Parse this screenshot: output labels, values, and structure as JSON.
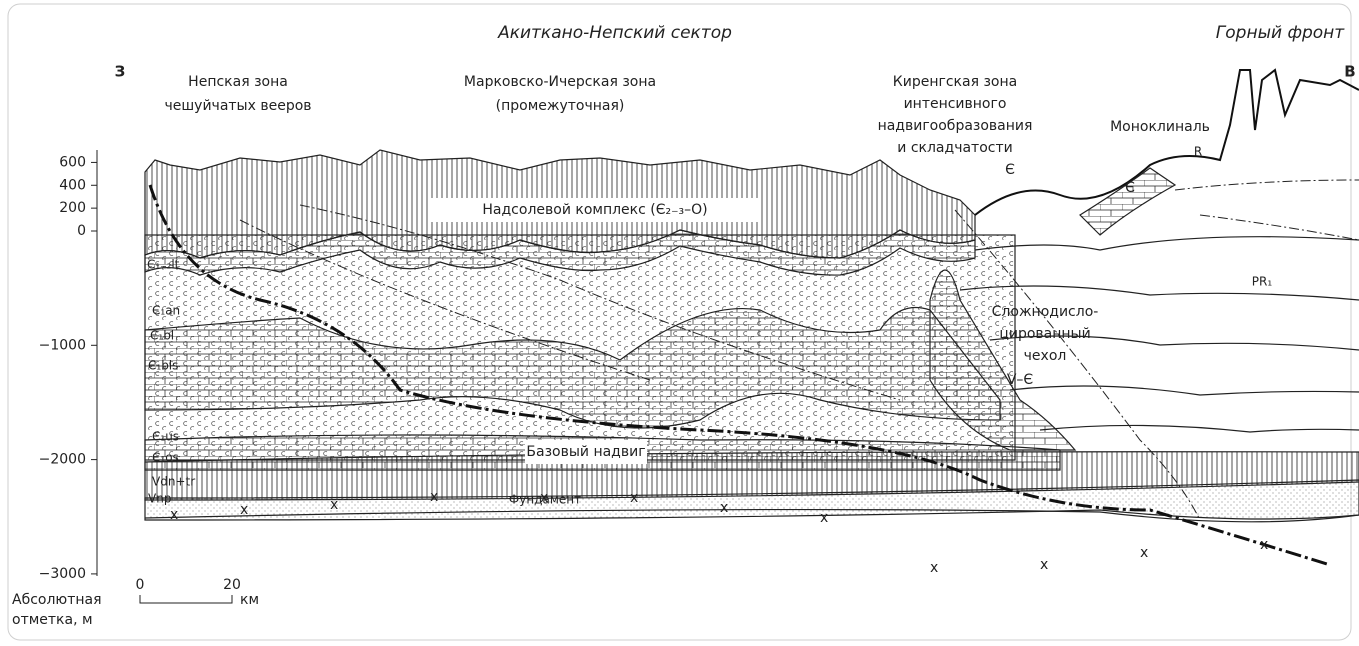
{
  "header": {
    "sector": "Акиткано-Непский сектор",
    "front": "Горный фронт",
    "west": "З",
    "east": "В"
  },
  "zones": [
    {
      "lines": [
        "Непская зона",
        "чешуйчатых вееров"
      ]
    },
    {
      "lines": [
        "Марковско-Ичерская зона",
        "(промежуточная)"
      ]
    },
    {
      "lines": [
        "Киренгская зона",
        "интенсивного",
        "надвигообразования",
        "и складчатости"
      ]
    },
    {
      "lines": [
        "Моноклиналь"
      ]
    }
  ],
  "layers": [
    "Є₁₋₂lt",
    "Є₁an",
    "Є₁bl",
    "Є₁bls",
    "Є₁us",
    "Є₁os",
    "Vdn+tr",
    "Vnp"
  ],
  "units": {
    "complex": "Надсолевой комплекс (Є₂₋₃–O)",
    "thrust": "Базовый надвиг",
    "basement": "Фундамент",
    "cover": [
      "Сложнодисло-",
      "цированный",
      "чехол"
    ],
    "cover_age": "V–Є",
    "pr": "PR₁",
    "cambrian_1": "Є",
    "cambrian_2": "Є",
    "riphean": "R"
  },
  "axis": {
    "title": [
      "Абсолютная",
      "отметка, м"
    ],
    "ticks": [
      600,
      400,
      200,
      0,
      {
        "value": -1000,
        "label": "−1000"
      },
      {
        "value": -2000,
        "label": "−2000"
      },
      {
        "value": -3000,
        "label": "−3000"
      }
    ]
  },
  "scale": {
    "start": 0,
    "end": 20,
    "unit": "км"
  }
}
